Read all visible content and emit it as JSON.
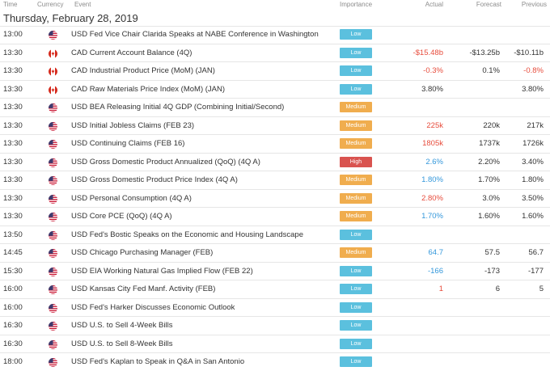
{
  "header": {
    "time": "Time",
    "currency": "Currency",
    "event": "Event",
    "importance": "Importance",
    "actual": "Actual",
    "forecast": "Forecast",
    "previous": "Previous"
  },
  "date": "Thursday, February 28, 2019",
  "colors": {
    "low": "#5bc0de",
    "medium": "#f0ad4e",
    "high": "#d9534f",
    "negative": "#e74c3c",
    "positive": "#3498db"
  },
  "rows": [
    {
      "time": "13:00",
      "flag": "us-flag-icon",
      "event": "USD Fed Vice Chair Clarida Speaks at NABE Conference in Washington",
      "importance": "Low",
      "imp_class": "low",
      "actual": "",
      "actual_class": "neu",
      "forecast": "",
      "previous": "",
      "previous_class": "neu"
    },
    {
      "time": "13:30",
      "flag": "ca-flag-icon",
      "event": "CAD Current Account Balance (4Q)",
      "importance": "Low",
      "imp_class": "low",
      "actual": "-$15.48b",
      "actual_class": "neg",
      "forecast": "-$13.25b",
      "previous": "-$10.11b",
      "previous_class": "neu"
    },
    {
      "time": "13:30",
      "flag": "ca-flag-icon",
      "event": "CAD Industrial Product Price (MoM) (JAN)",
      "importance": "Low",
      "imp_class": "low",
      "actual": "-0.3%",
      "actual_class": "neg",
      "forecast": "0.1%",
      "previous": "-0.8%",
      "previous_class": "neg"
    },
    {
      "time": "13:30",
      "flag": "ca-flag-icon",
      "event": "CAD Raw Materials Price Index (MoM) (JAN)",
      "importance": "Low",
      "imp_class": "low",
      "actual": "3.80%",
      "actual_class": "neu",
      "forecast": "",
      "previous": "3.80%",
      "previous_class": "neu"
    },
    {
      "time": "13:30",
      "flag": "us-flag-icon",
      "event": "USD BEA Releasing Initial 4Q GDP (Combining Initial/Second)",
      "importance": "Medium",
      "imp_class": "medium",
      "actual": "",
      "actual_class": "neu",
      "forecast": "",
      "previous": "",
      "previous_class": "neu"
    },
    {
      "time": "13:30",
      "flag": "us-flag-icon",
      "event": "USD Initial Jobless Claims (FEB 23)",
      "importance": "Medium",
      "imp_class": "medium",
      "actual": "225k",
      "actual_class": "neg",
      "forecast": "220k",
      "previous": "217k",
      "previous_class": "neu"
    },
    {
      "time": "13:30",
      "flag": "us-flag-icon",
      "event": "USD Continuing Claims (FEB 16)",
      "importance": "Medium",
      "imp_class": "medium",
      "actual": "1805k",
      "actual_class": "neg",
      "forecast": "1737k",
      "previous": "1726k",
      "previous_class": "neu"
    },
    {
      "time": "13:30",
      "flag": "us-flag-icon",
      "event": "USD Gross Domestic Product Annualized (QoQ) (4Q A)",
      "importance": "High",
      "imp_class": "high",
      "actual": "2.6%",
      "actual_class": "pos",
      "forecast": "2.20%",
      "previous": "3.40%",
      "previous_class": "neu"
    },
    {
      "time": "13:30",
      "flag": "us-flag-icon",
      "event": "USD Gross Domestic Product Price Index (4Q A)",
      "importance": "Medium",
      "imp_class": "medium",
      "actual": "1.80%",
      "actual_class": "pos",
      "forecast": "1.70%",
      "previous": "1.80%",
      "previous_class": "neu"
    },
    {
      "time": "13:30",
      "flag": "us-flag-icon",
      "event": "USD Personal Consumption (4Q A)",
      "importance": "Medium",
      "imp_class": "medium",
      "actual": "2.80%",
      "actual_class": "neg",
      "forecast": "3.0%",
      "previous": "3.50%",
      "previous_class": "neu"
    },
    {
      "time": "13:30",
      "flag": "us-flag-icon",
      "event": "USD Core PCE (QoQ) (4Q A)",
      "importance": "Medium",
      "imp_class": "medium",
      "actual": "1.70%",
      "actual_class": "pos",
      "forecast": "1.60%",
      "previous": "1.60%",
      "previous_class": "neu"
    },
    {
      "time": "13:50",
      "flag": "us-flag-icon",
      "event": "USD Fed's Bostic Speaks on the Economic and Housing Landscape",
      "importance": "Low",
      "imp_class": "low",
      "actual": "",
      "actual_class": "neu",
      "forecast": "",
      "previous": "",
      "previous_class": "neu"
    },
    {
      "time": "14:45",
      "flag": "us-flag-icon",
      "event": "USD Chicago Purchasing Manager (FEB)",
      "importance": "Medium",
      "imp_class": "medium",
      "actual": "64.7",
      "actual_class": "pos",
      "forecast": "57.5",
      "previous": "56.7",
      "previous_class": "neu"
    },
    {
      "time": "15:30",
      "flag": "us-flag-icon",
      "event": "USD EIA Working Natural Gas Implied Flow (FEB 22)",
      "importance": "Low",
      "imp_class": "low",
      "actual": "-166",
      "actual_class": "pos",
      "forecast": "-173",
      "previous": "-177",
      "previous_class": "neu"
    },
    {
      "time": "16:00",
      "flag": "us-flag-icon",
      "event": "USD Kansas City Fed Manf. Activity (FEB)",
      "importance": "Low",
      "imp_class": "low",
      "actual": "1",
      "actual_class": "neg",
      "forecast": "6",
      "previous": "5",
      "previous_class": "neu"
    },
    {
      "time": "16:00",
      "flag": "us-flag-icon",
      "event": "USD Fed's Harker Discusses Economic Outlook",
      "importance": "Low",
      "imp_class": "low",
      "actual": "",
      "actual_class": "neu",
      "forecast": "",
      "previous": "",
      "previous_class": "neu"
    },
    {
      "time": "16:30",
      "flag": "us-flag-icon",
      "event": "USD U.S. to Sell 4-Week Bills",
      "importance": "Low",
      "imp_class": "low",
      "actual": "",
      "actual_class": "neu",
      "forecast": "",
      "previous": "",
      "previous_class": "neu"
    },
    {
      "time": "16:30",
      "flag": "us-flag-icon",
      "event": "USD U.S. to Sell 8-Week Bills",
      "importance": "Low",
      "imp_class": "low",
      "actual": "",
      "actual_class": "neu",
      "forecast": "",
      "previous": "",
      "previous_class": "neu"
    },
    {
      "time": "18:00",
      "flag": "us-flag-icon",
      "event": "USD Fed's Kaplan to Speak in Q&A in San Antonio",
      "importance": "Low",
      "imp_class": "low",
      "actual": "",
      "actual_class": "neu",
      "forecast": "",
      "previous": "",
      "previous_class": "neu"
    }
  ]
}
